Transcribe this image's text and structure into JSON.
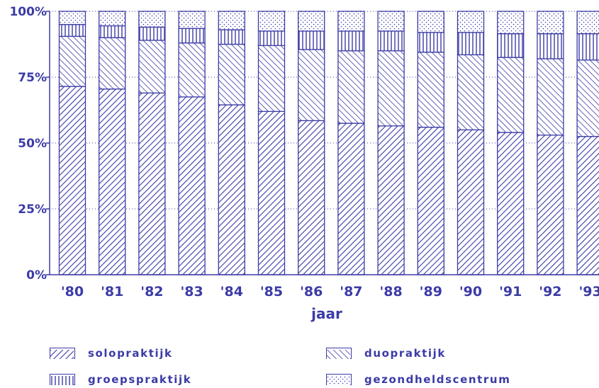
{
  "chart_data": {
    "type": "bar",
    "stacked": true,
    "orientation": "vertical",
    "categories": [
      "'80",
      "'81",
      "'82",
      "'83",
      "'84",
      "'85",
      "'86",
      "'87",
      "'88",
      "'89",
      "'90",
      "'91",
      "'92",
      "'93"
    ],
    "series": [
      {
        "name": "solopraktijk",
        "pattern": "diagonal-right",
        "values": [
          71.5,
          70.5,
          69,
          67.5,
          64.5,
          62,
          58.5,
          57.5,
          56.5,
          56,
          55,
          54,
          53,
          52.5
        ]
      },
      {
        "name": "duopraktijk",
        "pattern": "diagonal-left",
        "values": [
          19,
          19.5,
          20,
          20.5,
          23,
          25,
          27,
          27.5,
          28.5,
          28.5,
          28.5,
          28.5,
          29,
          29
        ]
      },
      {
        "name": "groepspraktijk",
        "pattern": "vertical-lines",
        "values": [
          4.5,
          4.5,
          5,
          5.5,
          5.5,
          5.5,
          7,
          7.5,
          7.5,
          7.5,
          8.5,
          9,
          9.5,
          10
        ]
      },
      {
        "name": "gezondheldscentrum",
        "pattern": "dots",
        "values": [
          5,
          5.5,
          6,
          6.5,
          7,
          7.5,
          7.5,
          7.5,
          7.5,
          8,
          8,
          8.5,
          8.5,
          8.5
        ]
      }
    ],
    "ylim": [
      0,
      100
    ],
    "yticks": [
      "0%",
      "25%",
      "50%",
      "75%",
      "100%"
    ],
    "ytick_values": [
      0,
      25,
      50,
      75,
      100
    ],
    "xlabel": "jaar",
    "ylabel": "",
    "grid": "horizontal dotted",
    "legend_position": "bottom"
  },
  "colors": {
    "ink": "#3b3ba6",
    "background": "#ffffff"
  }
}
